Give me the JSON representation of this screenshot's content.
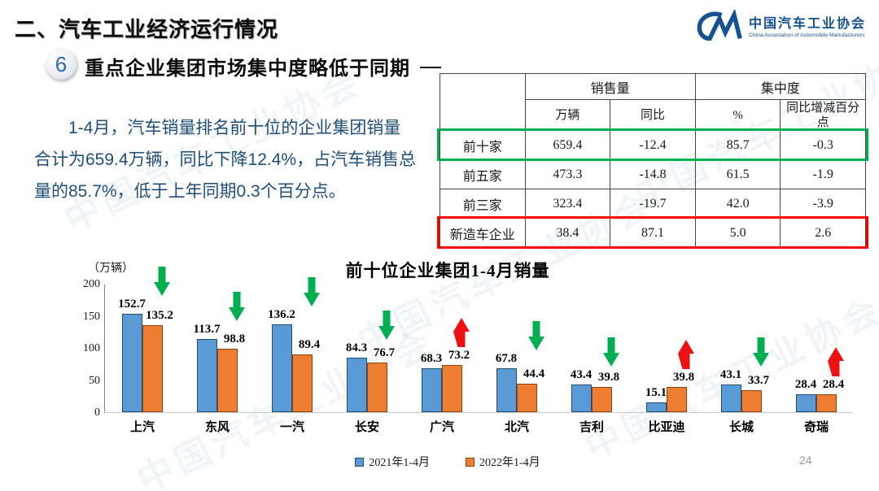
{
  "page": {
    "section_title": "二、汽车工业经济运行情况",
    "page_number": "24",
    "watermark": "中国汽车工业协会"
  },
  "logo": {
    "name_cn": "中国汽车工业协会",
    "name_en": "China Association of Automobile Manufacturers",
    "brand_color": "#16528F"
  },
  "headline": {
    "badge_number": "6",
    "title": "重点企业集团市场集中度略低于同期"
  },
  "summary_paragraph": "1-4月，汽车销量排名前十位的企业集团销量合计为659.4万辆，同比下降12.4%，占汽车销售总量的85.7%，低于上年同期0.3个百分点。",
  "table": {
    "col_groups": [
      "销售量",
      "集中度"
    ],
    "sub_headers": [
      "万辆",
      "同比",
      "%",
      "同比增减百分点"
    ],
    "rows": [
      {
        "label": "前十家",
        "values": [
          "659.4",
          "-12.4",
          "85.7",
          "-0.3"
        ],
        "highlight": "green"
      },
      {
        "label": "前五家",
        "values": [
          "473.3",
          "-14.8",
          "61.5",
          "-1.9"
        ],
        "highlight": null
      },
      {
        "label": "前三家",
        "values": [
          "323.4",
          "-19.7",
          "42.0",
          "-3.9"
        ],
        "highlight": null
      },
      {
        "label": "新造车企业",
        "values": [
          "38.4",
          "87.1",
          "5.0",
          "2.6"
        ],
        "highlight": "red"
      }
    ],
    "highlight_colors": {
      "green": "#00B050",
      "red": "#FF0000"
    }
  },
  "chart_data": {
    "type": "bar",
    "title": "前十位企业集团1-4月销量",
    "unit_label": "（万辆）",
    "categories": [
      "上汽",
      "东风",
      "一汽",
      "长安",
      "广汽",
      "北汽",
      "吉利",
      "比亚迪",
      "长城",
      "奇瑞"
    ],
    "series": [
      {
        "name": "2021年1-4月",
        "color": "#5B9BD5",
        "border": "#1F4E79",
        "values": [
          152.7,
          113.7,
          136.2,
          84.3,
          68.3,
          67.8,
          43.4,
          15.1,
          43.1,
          28.4
        ]
      },
      {
        "name": "2022年1-4月",
        "color": "#ED7D31",
        "border": "#8C4511",
        "values": [
          135.2,
          98.8,
          89.4,
          76.7,
          73.2,
          44.4,
          39.8,
          39.8,
          33.7,
          28.4
        ]
      }
    ],
    "trend_arrows": [
      "down",
      "down",
      "down",
      "down",
      "up",
      "down",
      "down",
      "up",
      "down",
      "up"
    ],
    "arrow_colors": {
      "down": "#00B050",
      "up": "#EE1111"
    },
    "ylim": [
      0,
      200
    ],
    "yticks": [
      0,
      50,
      100,
      150,
      200
    ],
    "grid": false,
    "legend_position": "bottom"
  }
}
